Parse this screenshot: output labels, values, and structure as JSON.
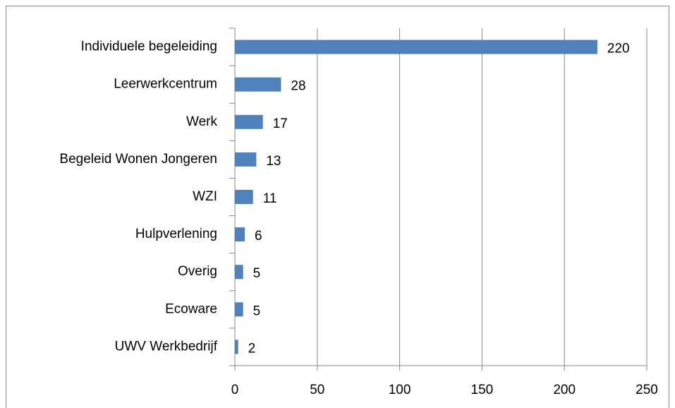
{
  "chart_data": {
    "type": "bar",
    "orientation": "horizontal",
    "categories": [
      "Individuele begeleiding",
      "Leerwerkcentrum",
      "Werk",
      "Begeleid Wonen Jongeren",
      "WZI",
      "Hulpverlening",
      "Overig",
      "Ecoware",
      "UWV Werkbedrijf"
    ],
    "values": [
      220,
      28,
      17,
      13,
      11,
      6,
      5,
      5,
      2
    ],
    "color": "#4f81bd",
    "xlim": [
      0,
      250
    ],
    "xticks": [
      0,
      50,
      100,
      150,
      200,
      250
    ],
    "grid": true
  }
}
